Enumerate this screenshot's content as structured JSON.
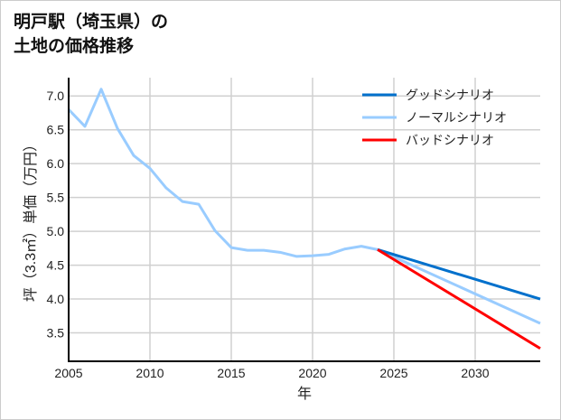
{
  "chart_data": {
    "type": "line",
    "title_lines": [
      "明戸駅（埼玉県）の",
      "土地の価格推移"
    ],
    "xlabel": "年",
    "ylabel": "坪（3.3㎡）単価（万円）",
    "xlim": [
      2005,
      2034
    ],
    "ylim": [
      3.08,
      7.27
    ],
    "xticks": [
      2005,
      2010,
      2015,
      2020,
      2025,
      2030
    ],
    "yticks": [
      3.5,
      4.0,
      4.5,
      5.0,
      5.5,
      6.0,
      6.5,
      7.0
    ],
    "grid": true,
    "legend_position": "top-right",
    "series": [
      {
        "name": "グッドシナリオ",
        "color": "#0070cc",
        "x": [
          2024,
          2034
        ],
        "y": [
          4.73,
          4.0
        ]
      },
      {
        "name": "ノーマルシナリオ",
        "color": "#99ccff",
        "x": [
          2005,
          2006,
          2007,
          2008,
          2009,
          2010,
          2011,
          2012,
          2013,
          2014,
          2015,
          2016,
          2017,
          2018,
          2019,
          2020,
          2021,
          2022,
          2023,
          2024,
          2034
        ],
        "y": [
          6.8,
          6.55,
          7.1,
          6.52,
          6.12,
          5.93,
          5.64,
          5.44,
          5.4,
          5.01,
          4.76,
          4.72,
          4.72,
          4.69,
          4.63,
          4.64,
          4.66,
          4.74,
          4.78,
          4.73,
          3.64
        ]
      },
      {
        "name": "バッドシナリオ",
        "color": "#ff0000",
        "x": [
          2024,
          2034
        ],
        "y": [
          4.73,
          3.27
        ]
      }
    ]
  }
}
